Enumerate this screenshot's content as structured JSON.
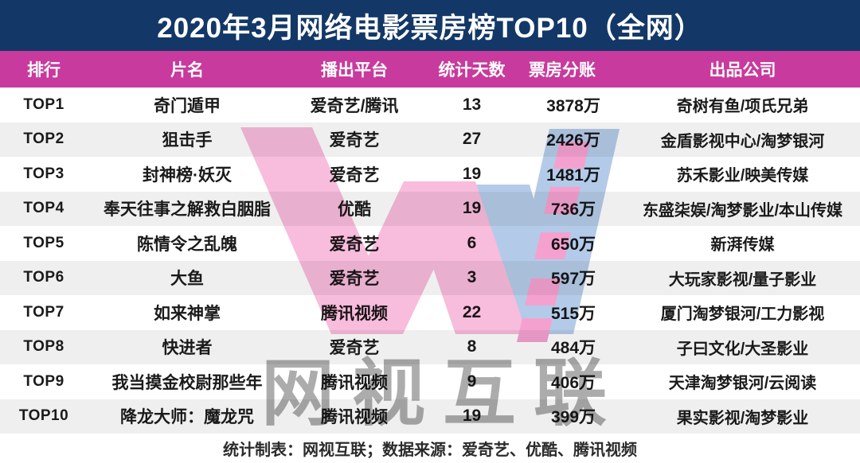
{
  "banner": {
    "title": "2020年3月网络电影票房榜TOP10（全网）"
  },
  "chart_data": {
    "type": "table",
    "title": "2020年3月网络电影票房榜TOP10（全网）",
    "columns": [
      "排行",
      "片名",
      "播出平台",
      "统计天数",
      "票房分账",
      "出品公司"
    ],
    "rows": [
      [
        "TOP1",
        "奇门遁甲",
        "爱奇艺/腾讯",
        "13",
        "3878万",
        "奇树有鱼/项氏兄弟"
      ],
      [
        "TOP2",
        "狙击手",
        "爱奇艺",
        "27",
        "2426万",
        "金盾影视中心/淘梦银河"
      ],
      [
        "TOP3",
        "封神榜·妖灭",
        "爱奇艺",
        "19",
        "1481万",
        "苏禾影业/映美传媒"
      ],
      [
        "TOP4",
        "奉天往事之解救白胭脂",
        "优酷",
        "19",
        "736万",
        "东盛柒娱/淘梦影业/本山传媒"
      ],
      [
        "TOP5",
        "陈情令之乱魄",
        "爱奇艺",
        "6",
        "650万",
        "新湃传媒"
      ],
      [
        "TOP6",
        "大鱼",
        "爱奇艺",
        "3",
        "597万",
        "大玩家影视/量子影业"
      ],
      [
        "TOP7",
        "如来神掌",
        "腾讯视频",
        "22",
        "515万",
        "厦门淘梦银河/工力影视"
      ],
      [
        "TOP8",
        "快进者",
        "爱奇艺",
        "8",
        "484万",
        "子曰文化/大圣影业"
      ],
      [
        "TOP9",
        "我当摸金校尉那些年",
        "腾讯视频",
        "9",
        "406万",
        "天津淘梦银河/云阅读"
      ],
      [
        "TOP10",
        "降龙大师：魔龙咒",
        "腾讯视频",
        "19",
        "399万",
        "果实影视/淘梦影业"
      ]
    ]
  },
  "footer": {
    "note": "统计制表：网视互联；数据来源：爱奇艺、优酷、腾讯视频"
  },
  "watermark": {
    "text": "网视互联"
  },
  "colors": {
    "banner_bg": "#133867",
    "header_bg": "#c83a9d",
    "row_alt_bg": "#efefef",
    "body_text": "#1a1a1a",
    "watermark_pink": "#f7b0d6",
    "watermark_blue": "#a6c2e4",
    "watermark_dash_pink": "#f490c8",
    "watermark_gray": "#9e9e9e"
  }
}
